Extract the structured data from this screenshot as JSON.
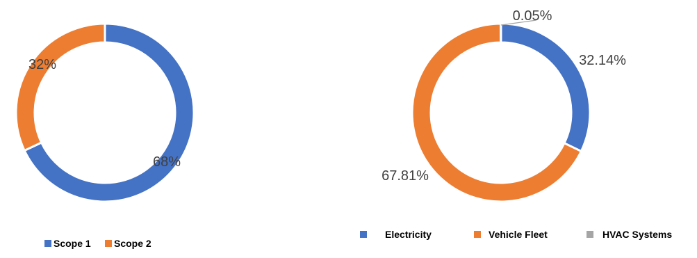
{
  "chart_data": [
    {
      "type": "pie",
      "donut": true,
      "legend_position": "bottom",
      "categories": [
        "Scope 1",
        "Scope 2"
      ],
      "values": [
        68,
        32
      ],
      "labels": [
        "68%",
        "32%"
      ],
      "colors": [
        "#4472C4",
        "#ED7D31"
      ]
    },
    {
      "type": "pie",
      "donut": true,
      "legend_position": "bottom",
      "categories": [
        "Electricity",
        "Vehicle Fleet",
        "HVAC Systems"
      ],
      "values": [
        32.14,
        67.81,
        0.05
      ],
      "labels": [
        "32.14%",
        "67.81%",
        "0.05%"
      ],
      "colors": [
        "#4472C4",
        "#ED7D31",
        "#A5A5A5"
      ]
    }
  ]
}
